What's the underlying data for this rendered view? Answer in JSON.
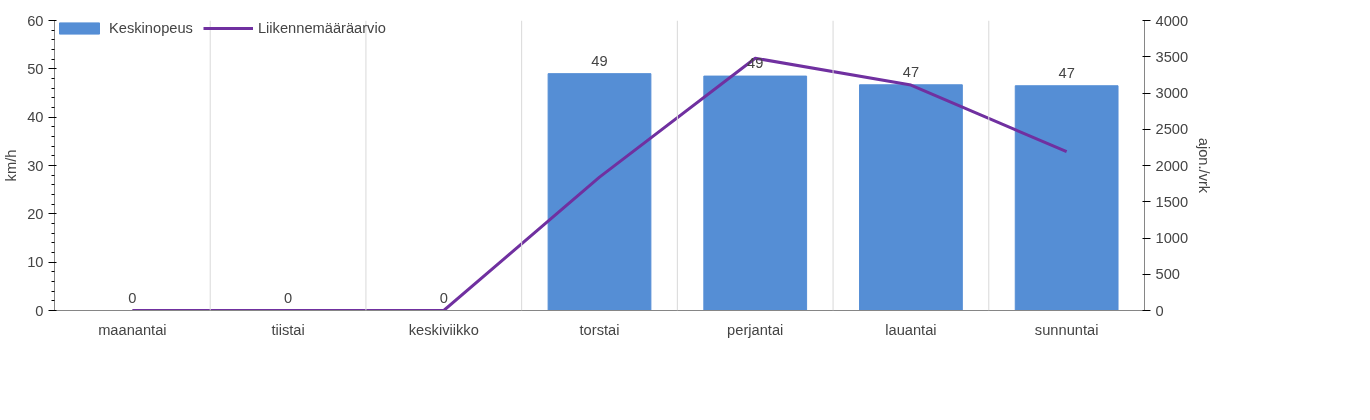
{
  "chart_data": {
    "type": "bar",
    "categories": [
      "maanantai",
      "tiistai",
      "keskiviikko",
      "torstai",
      "perjantai",
      "lauantai",
      "sunnuntai"
    ],
    "ylabel": "km/h",
    "y2label": "ajon./vrk",
    "ylim": [
      0,
      60
    ],
    "yticks": [
      0,
      10,
      20,
      30,
      40,
      50,
      60
    ],
    "y2lim": [
      0,
      4000
    ],
    "y2ticks": [
      0,
      500,
      1000,
      1500,
      2000,
      2500,
      3000,
      3500,
      4000
    ],
    "grid": "x",
    "legend": "top left",
    "series": [
      {
        "name": "Keskinopeus",
        "color": "#558ed5",
        "values": [
          0,
          0,
          0,
          49,
          48.5,
          46.7,
          46.5
        ],
        "value_labels": [
          "0",
          "0",
          "0",
          "49",
          "49",
          "47",
          "47"
        ]
      },
      {
        "name": "Liikennemääräarvio",
        "type": "line",
        "axis": "y2",
        "color": "#7030a0",
        "values": [
          0,
          0,
          0,
          1840,
          3480,
          3110,
          2190
        ]
      }
    ]
  }
}
